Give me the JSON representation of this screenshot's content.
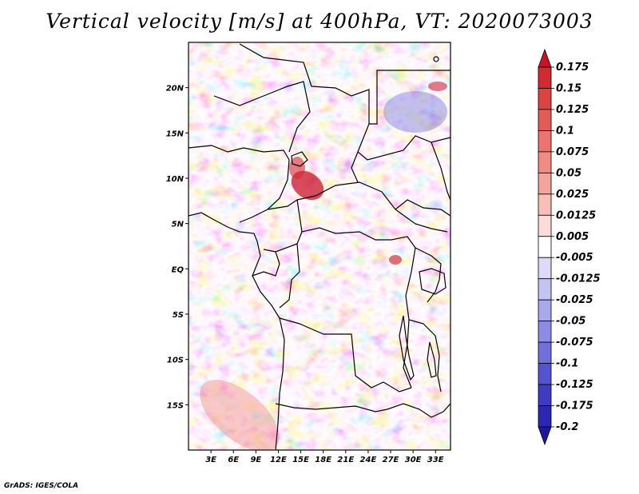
{
  "title": "Vertical velocity [m/s] at 400hPa, VT: 2020073003",
  "credit": "GrADS: IGES/COLA",
  "map": {
    "lon_ticks": [
      "3E",
      "6E",
      "9E",
      "12E",
      "15E",
      "18E",
      "21E",
      "24E",
      "27E",
      "30E",
      "33E"
    ],
    "lat_ticks": [
      "20N",
      "15N",
      "10N",
      "5N",
      "EQ",
      "5S",
      "10S",
      "15S"
    ]
  },
  "chart_data": {
    "type": "heatmap",
    "title": "Vertical velocity [m/s] at 400hPa, VT: 2020073003",
    "variable": "Vertical velocity",
    "units": "m/s",
    "level": "400hPa",
    "valid_time": "2020073003",
    "lon_range": [
      0,
      35
    ],
    "lat_range": [
      -20,
      25
    ],
    "lon_ticks": [
      "3E",
      "6E",
      "9E",
      "12E",
      "15E",
      "18E",
      "21E",
      "24E",
      "27E",
      "30E",
      "33E"
    ],
    "lat_ticks": [
      "20N",
      "15N",
      "10N",
      "5N",
      "EQ",
      "5S",
      "10S",
      "15S"
    ],
    "colorbar": {
      "levels": [
        "0.175",
        "0.15",
        "0.125",
        "0.1",
        "0.075",
        "0.05",
        "0.025",
        "0.0125",
        "0.005",
        "-0.005",
        "-0.0125",
        "-0.025",
        "-0.05",
        "-0.075",
        "-0.1",
        "-0.125",
        "-0.175",
        "-0.2"
      ],
      "colors": [
        "#c8142a",
        "#d22a30",
        "#dc4444",
        "#e45c58",
        "#ea756e",
        "#f08c84",
        "#f4a49c",
        "#f8bfb8",
        "#fcdcd8",
        "#ffffff",
        "#dcdcfa",
        "#c4c4f4",
        "#a8a8ee",
        "#8c8ce6",
        "#7070dc",
        "#5454d0",
        "#3c3cc4",
        "#2828b4",
        "#1a1aa0"
      ]
    }
  }
}
